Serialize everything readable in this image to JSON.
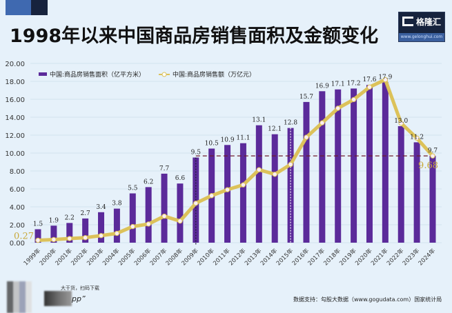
{
  "header": {
    "title": "1998年以来中国商品房销售面积及金额变化",
    "logo_text": "格隆汇",
    "logo_url": "www.gelonghui.com"
  },
  "footer": {
    "qr_caption": "大干货，扫码下载",
    "app_text": "pp”",
    "source": "数据支持：勾股大数据（www.gogudata.com）国家统计局"
  },
  "colors": {
    "bar": "#5b2a9a",
    "line": "#dcc25a",
    "marker_fill": "#fbeef2",
    "annotation": "#c8a93a",
    "dashed": "#6b1a2a"
  },
  "chart_data": {
    "type": "bar+line",
    "title": "1998年以来中国商品房销售面积及金额变化",
    "categories": [
      "1999年",
      "2000年",
      "2001年",
      "2002年",
      "2003年",
      "2004年",
      "2005年",
      "2006年",
      "2007年",
      "2008年",
      "2009年",
      "2010年",
      "2011年",
      "2012年",
      "2013年",
      "2014年",
      "2015年",
      "2016年",
      "2017年",
      "2018年",
      "2019年",
      "2020年",
      "2021年",
      "2022年",
      "2023年",
      "2024年"
    ],
    "ylim": [
      0,
      20
    ],
    "yticks": [
      "0.00",
      "2.00",
      "4.00",
      "6.00",
      "8.00",
      "10.00",
      "12.00",
      "14.00",
      "16.00",
      "18.00",
      "20.00"
    ],
    "grid": true,
    "legend_position": "top-left",
    "series": [
      {
        "name": "中国:商品房销售面积（亿平方米）",
        "type": "bar",
        "values": [
          1.5,
          1.9,
          2.2,
          2.7,
          3.4,
          3.8,
          5.5,
          6.2,
          7.7,
          6.6,
          9.5,
          10.5,
          10.9,
          11.1,
          13.1,
          12.1,
          12.8,
          15.7,
          16.9,
          17.1,
          17.2,
          17.6,
          17.9,
          13.0,
          11.2,
          9.7
        ],
        "labels": [
          "1.5",
          "1.9",
          "2.2",
          "2.7",
          "3.4",
          "3.8",
          "5.5",
          "6.2",
          "7.7",
          "6.6",
          "9.5",
          "10.5",
          "10.9",
          "11.1",
          "13.1",
          "12.1",
          "12.8",
          "15.7",
          "16.9",
          "17.1",
          "17.2",
          "17.6",
          "17.9",
          "13.0",
          "11.2",
          "9.7"
        ]
      },
      {
        "name": "中国:商品房销售额（万亿元）",
        "type": "line",
        "values": [
          0.27,
          0.35,
          0.46,
          0.56,
          0.79,
          1.04,
          1.8,
          2.08,
          2.96,
          2.41,
          4.4,
          5.25,
          5.91,
          6.45,
          8.14,
          7.63,
          8.73,
          11.76,
          13.37,
          15.0,
          15.97,
          17.36,
          18.19,
          13.33,
          11.66,
          9.68
        ]
      }
    ],
    "annotations": [
      {
        "text": "0.27",
        "category": "1999年",
        "series": "中国:商品房销售额（万亿元）"
      },
      {
        "text": "9.68",
        "category": "2024年",
        "series": "中国:商品房销售额（万亿元）"
      }
    ],
    "reference_line": {
      "y": 9.68,
      "from": "2009年",
      "to": "2024年",
      "style": "dashed"
    },
    "vertical_markers": [
      "2009年",
      "2015年"
    ]
  }
}
